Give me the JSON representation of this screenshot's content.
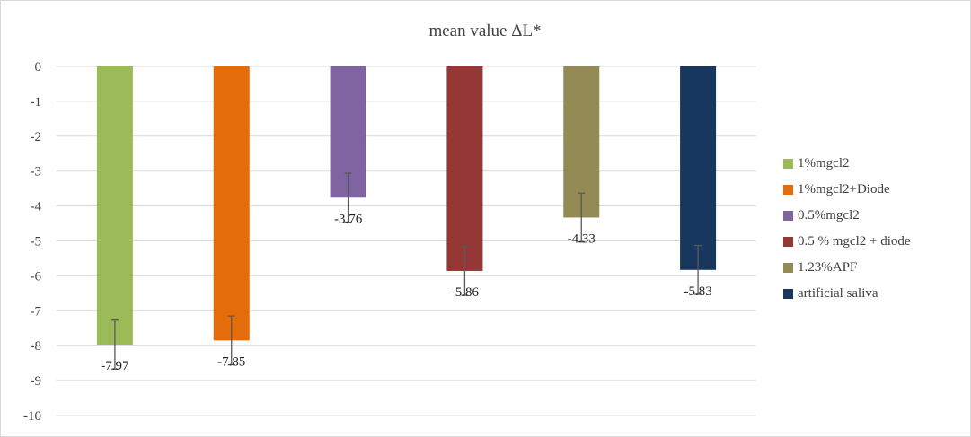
{
  "chart_data": {
    "type": "bar",
    "title": "mean value ΔL*",
    "xlabel": "",
    "ylabel": "",
    "ylim": [
      -10,
      0
    ],
    "yticks": [
      0,
      -1,
      -2,
      -3,
      -4,
      -5,
      -6,
      -7,
      -8,
      -9,
      -10
    ],
    "grid": true,
    "legend_position": "right",
    "series": [
      {
        "name": "1%mgcl2",
        "value": -7.97,
        "label": "-7.97",
        "error": 0.7,
        "color": "#9bbb59"
      },
      {
        "name": "1%mgcl2+Diode",
        "value": -7.85,
        "label": "-7.85",
        "error": 0.7,
        "color": "#e46c0a"
      },
      {
        "name": "0.5%mgcl2",
        "value": -3.76,
        "label": "-3.76",
        "error": 0.7,
        "color": "#8064a2"
      },
      {
        "name": "0.5 % mgcl2 + diode",
        "value": -5.86,
        "label": "-5.86",
        "error": 0.7,
        "color": "#953735"
      },
      {
        "name": "1.23%APF",
        "value": -4.33,
        "label": "-4.33",
        "error": 0.7,
        "color": "#948a54"
      },
      {
        "name": "artificial saliva",
        "value": -5.83,
        "label": "-5.83",
        "error": 0.7,
        "color": "#17375e"
      }
    ]
  }
}
